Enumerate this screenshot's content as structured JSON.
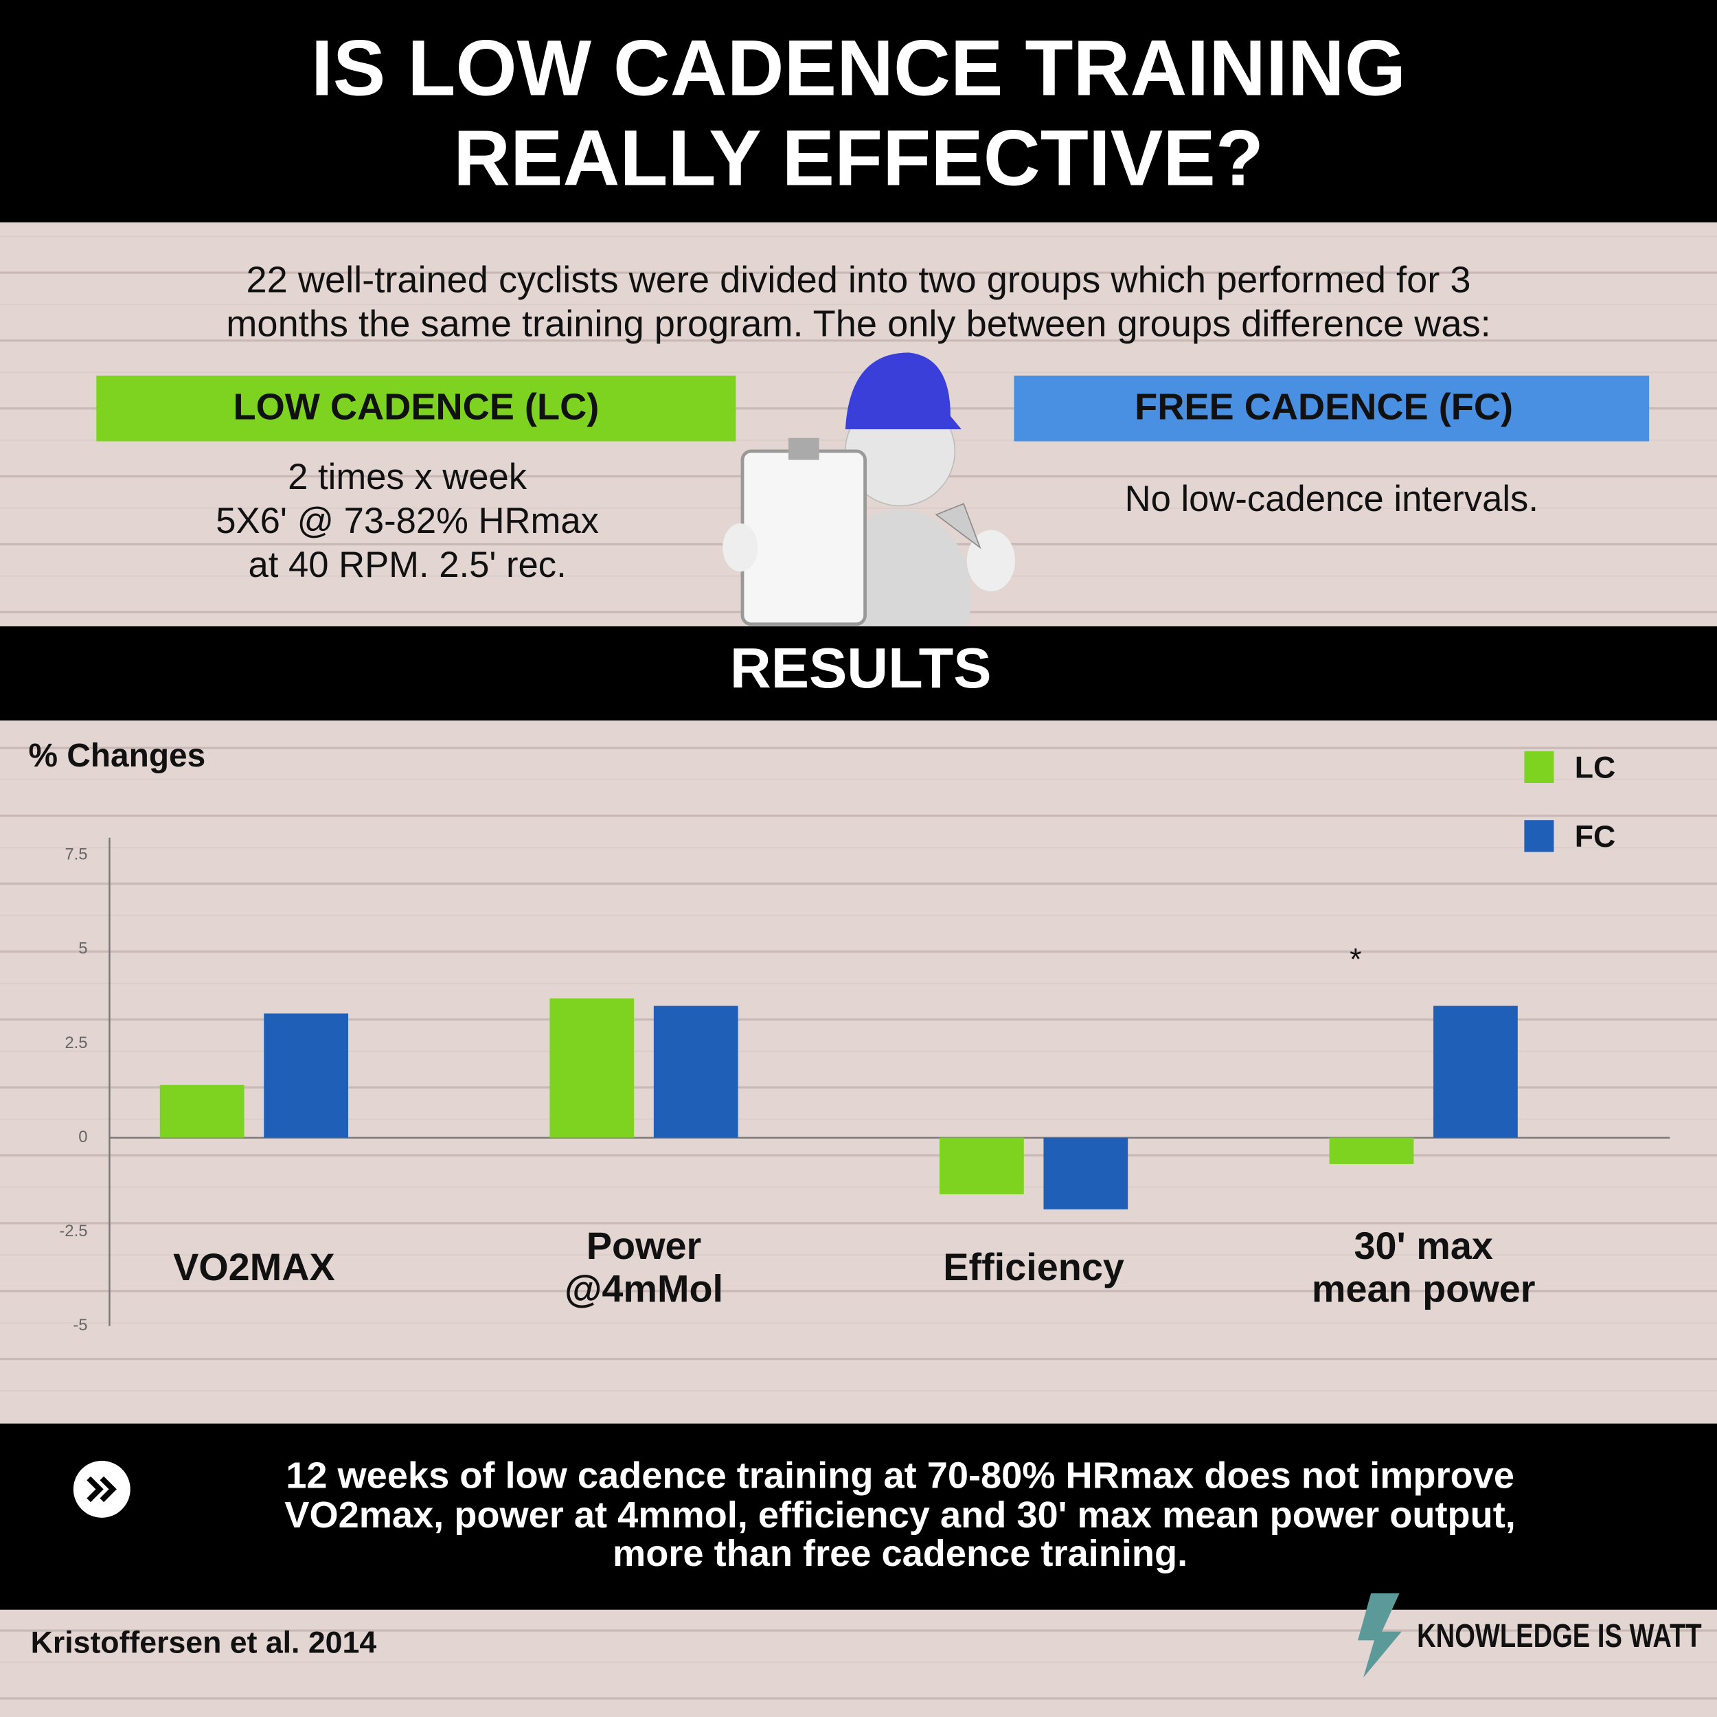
{
  "header": {
    "title_lines": [
      "IS LOW CADENCE TRAINING",
      "REALLY EFFECTIVE?"
    ]
  },
  "intro": {
    "lines": [
      "22 well-trained cyclists were divided into two groups which performed  for 3",
      "months the same training program. The only between groups difference was:"
    ]
  },
  "groups": [
    {
      "label": "LOW CADENCE (LC)",
      "lines": [
        "2 times x week",
        "5X6' @ 73-82% HRmax",
        "at 40 RPM. 2.5' rec."
      ]
    },
    {
      "label": "FREE CADENCE (FC)",
      "lines": [
        "No low-cadence intervals."
      ]
    }
  ],
  "results_title": "RESULTS",
  "chart_data": {
    "type": "bar",
    "y_label": "% Changes",
    "categories": [
      [
        "VO2MAX"
      ],
      [
        "Power",
        "@4mMol"
      ],
      [
        "Efficiency"
      ],
      [
        "30'  max",
        "mean power"
      ]
    ],
    "series": [
      {
        "name": "LC",
        "color": "#7ed321",
        "values": [
          1.4,
          3.7,
          -1.5,
          -0.7
        ]
      },
      {
        "name": "FC",
        "color": "#1f5fb8",
        "values": [
          3.3,
          3.5,
          -1.9,
          3.5
        ]
      }
    ],
    "annotation": "*",
    "ylim": [
      -5,
      7.5
    ],
    "yticks": [
      7.5,
      5,
      2.5,
      0,
      -2.5,
      -5
    ],
    "grid": false,
    "legend": "upper right"
  },
  "conclusion": {
    "lines": [
      "12 weeks of low cadence training at 70-80% HRmax does not improve",
      "VO2max, power at 4mmol, efficiency and 30' max mean power output,",
      "more than free cadence training."
    ]
  },
  "citation": "Kristoffersen et al. 2014",
  "brand": "KNOWLEDGE IS WATT"
}
